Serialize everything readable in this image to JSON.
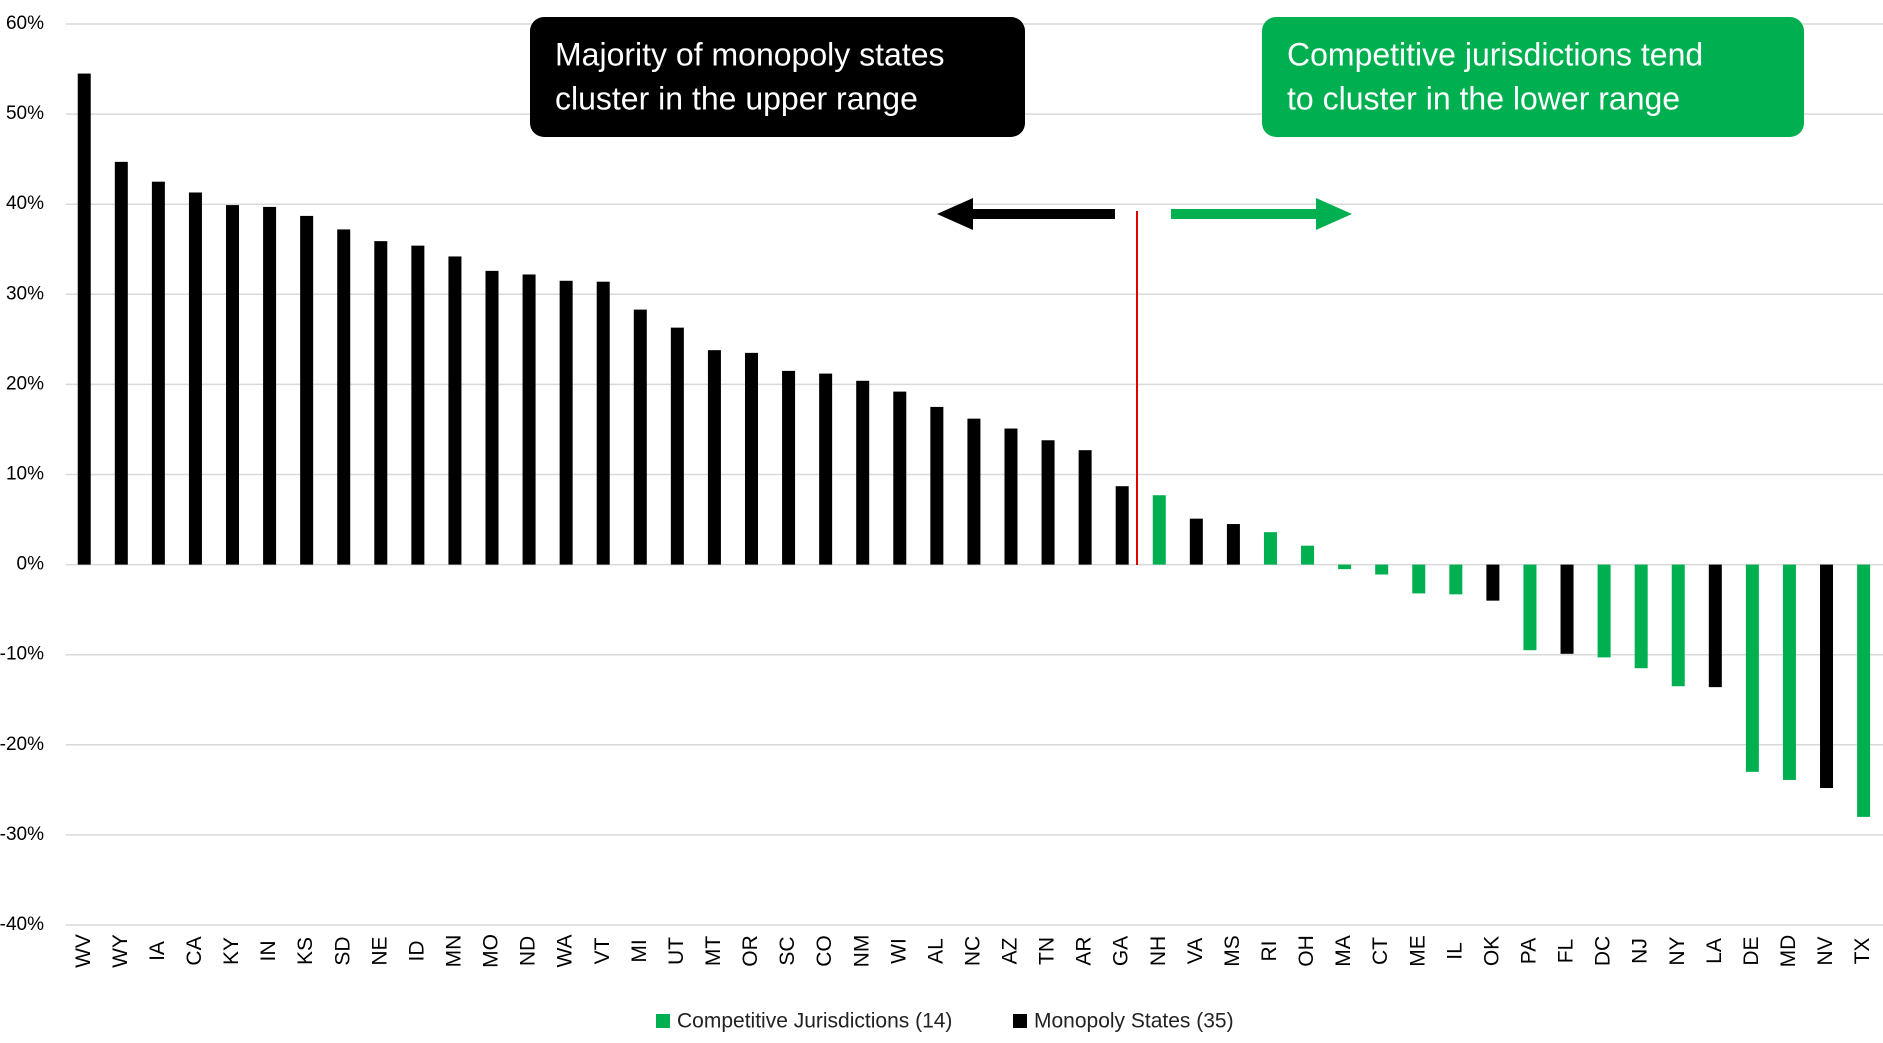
{
  "chart_data": {
    "type": "bar",
    "categories": [
      "WV",
      "WY",
      "IA",
      "CA",
      "KY",
      "IN",
      "KS",
      "SD",
      "NE",
      "ID",
      "MN",
      "MO",
      "ND",
      "WA",
      "VT",
      "MI",
      "UT",
      "MT",
      "OR",
      "SC",
      "CO",
      "NM",
      "WI",
      "AL",
      "NC",
      "AZ",
      "TN",
      "AR",
      "GA",
      "NH",
      "VA",
      "MS",
      "RI",
      "OH",
      "MA",
      "CT",
      "ME",
      "IL",
      "OK",
      "PA",
      "FL",
      "DC",
      "NJ",
      "NY",
      "LA",
      "DE",
      "MD",
      "NV",
      "TX"
    ],
    "series": [
      {
        "name": "Competitive Jurisdictions (14)",
        "color": "#00b050",
        "values": [
          null,
          null,
          null,
          null,
          null,
          null,
          null,
          null,
          null,
          null,
          null,
          null,
          null,
          null,
          null,
          null,
          null,
          null,
          null,
          null,
          null,
          null,
          null,
          null,
          null,
          null,
          null,
          null,
          null,
          7.7,
          null,
          null,
          3.6,
          2.1,
          -0.5,
          -1.1,
          -3.2,
          -3.3,
          null,
          -9.5,
          null,
          -10.3,
          -11.5,
          -13.5,
          null,
          -23.0,
          -23.9,
          null,
          -28.0
        ]
      },
      {
        "name": "Monopoly States (35)",
        "color": "#000000",
        "values": [
          54.5,
          44.7,
          42.5,
          41.3,
          39.9,
          39.7,
          38.7,
          37.2,
          35.9,
          35.4,
          34.2,
          32.6,
          32.2,
          31.5,
          31.4,
          28.3,
          26.3,
          23.8,
          23.5,
          21.5,
          21.2,
          20.4,
          19.2,
          17.5,
          16.2,
          15.1,
          13.8,
          12.7,
          8.7,
          null,
          5.1,
          4.5,
          null,
          null,
          null,
          null,
          null,
          null,
          -4.0,
          null,
          -9.9,
          null,
          null,
          null,
          -13.6,
          null,
          null,
          -24.8,
          null
        ]
      }
    ],
    "ylim": [
      -40,
      60
    ],
    "yticks": [
      {
        "value": -40,
        "label": "-40%"
      },
      {
        "value": -30,
        "label": "-30%"
      },
      {
        "value": -20,
        "label": "-20%"
      },
      {
        "value": -10,
        "label": "-10%"
      },
      {
        "value": 0,
        "label": "0%"
      },
      {
        "value": 10,
        "label": "10%"
      },
      {
        "value": 20,
        "label": "20%"
      },
      {
        "value": 30,
        "label": "30%"
      },
      {
        "value": 40,
        "label": "40%"
      },
      {
        "value": 50,
        "label": "50%"
      },
      {
        "value": 60,
        "label": "60%"
      }
    ],
    "grid": true,
    "legend": "bottom",
    "annotations": [
      {
        "lines": [
          "Majority of monopoly states",
          "cluster in the upper range"
        ],
        "color": "#000000"
      },
      {
        "lines": [
          "Competitive jurisdictions tend",
          "to cluster in the lower range"
        ],
        "color": "#00b050"
      }
    ]
  }
}
